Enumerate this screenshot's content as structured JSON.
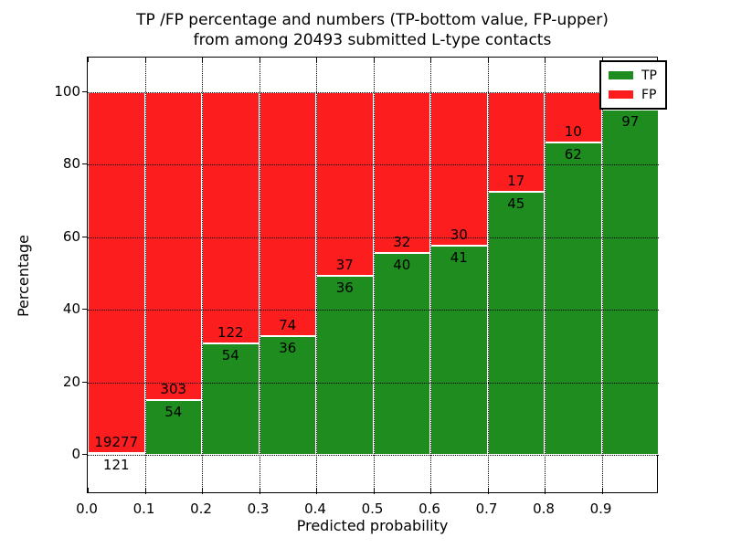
{
  "title": {
    "line1": "TP /FP percentage and numbers (TP-bottom value, FP-upper)",
    "line2": "from among 20493 submitted L-type contacts"
  },
  "axes": {
    "xlabel": "Predicted probability",
    "ylabel": "Percentage",
    "xticks": [
      "0.0",
      "0.1",
      "0.2",
      "0.3",
      "0.4",
      "0.5",
      "0.6",
      "0.7",
      "0.8",
      "0.9"
    ],
    "yticks": [
      "0",
      "20",
      "40",
      "60",
      "80",
      "100"
    ]
  },
  "legend": {
    "items": [
      {
        "label": "TP",
        "color": "#1e8c1e"
      },
      {
        "label": "FP",
        "color": "#fc1e1e"
      }
    ]
  },
  "chart_data": {
    "type": "bar",
    "subtype": "stacked-100-percent",
    "title": "TP /FP percentage and numbers (TP-bottom value, FP-upper) from among 20493 submitted L-type contacts",
    "total_submitted": 20493,
    "xlabel": "Predicted probability",
    "ylabel": "Percentage",
    "xlim": [
      0.0,
      1.0
    ],
    "ylim": [
      -11,
      110
    ],
    "bin_width": 0.1,
    "grid": "dotted black, x every 0.1, y every 20",
    "legend_position": "upper right",
    "colors": {
      "tp": "#1e8c1e",
      "fp": "#fc1e1e",
      "edge": "#ffffff"
    },
    "series": [
      {
        "name": "TP",
        "role": "bottom"
      },
      {
        "name": "FP",
        "role": "upper"
      }
    ],
    "bins": [
      {
        "range": [
          0.0,
          0.1
        ],
        "tp": 121,
        "fp": 19277,
        "tp_label": "121",
        "fp_label": "19277",
        "tp_pct": 0.62
      },
      {
        "range": [
          0.1,
          0.2
        ],
        "tp": 54,
        "fp": 303,
        "tp_label": "54",
        "fp_label": "303",
        "tp_pct": 15.13
      },
      {
        "range": [
          0.2,
          0.3
        ],
        "tp": 54,
        "fp": 122,
        "tp_label": "54",
        "fp_label": "122",
        "tp_pct": 30.68
      },
      {
        "range": [
          0.3,
          0.4
        ],
        "tp": 36,
        "fp": 74,
        "tp_label": "36",
        "fp_label": "74",
        "tp_pct": 32.73
      },
      {
        "range": [
          0.4,
          0.5
        ],
        "tp": 36,
        "fp": 37,
        "tp_label": "36",
        "fp_label": "37",
        "tp_pct": 49.32
      },
      {
        "range": [
          0.5,
          0.6
        ],
        "tp": 40,
        "fp": 32,
        "tp_label": "40",
        "fp_label": "32",
        "tp_pct": 55.56
      },
      {
        "range": [
          0.6,
          0.7
        ],
        "tp": 41,
        "fp": 30,
        "tp_label": "41",
        "fp_label": "30",
        "tp_pct": 57.75
      },
      {
        "range": [
          0.7,
          0.8
        ],
        "tp": 45,
        "fp": 17,
        "tp_label": "45",
        "fp_label": "17",
        "tp_pct": 72.58
      },
      {
        "range": [
          0.8,
          0.9
        ],
        "tp": 62,
        "fp": 10,
        "tp_label": "62",
        "fp_label": "10",
        "tp_pct": 86.11
      },
      {
        "range": [
          0.9,
          1.0
        ],
        "tp": 97,
        "fp": null,
        "tp_label": "97",
        "fp_label": "",
        "tp_pct": 95.1
      }
    ]
  }
}
